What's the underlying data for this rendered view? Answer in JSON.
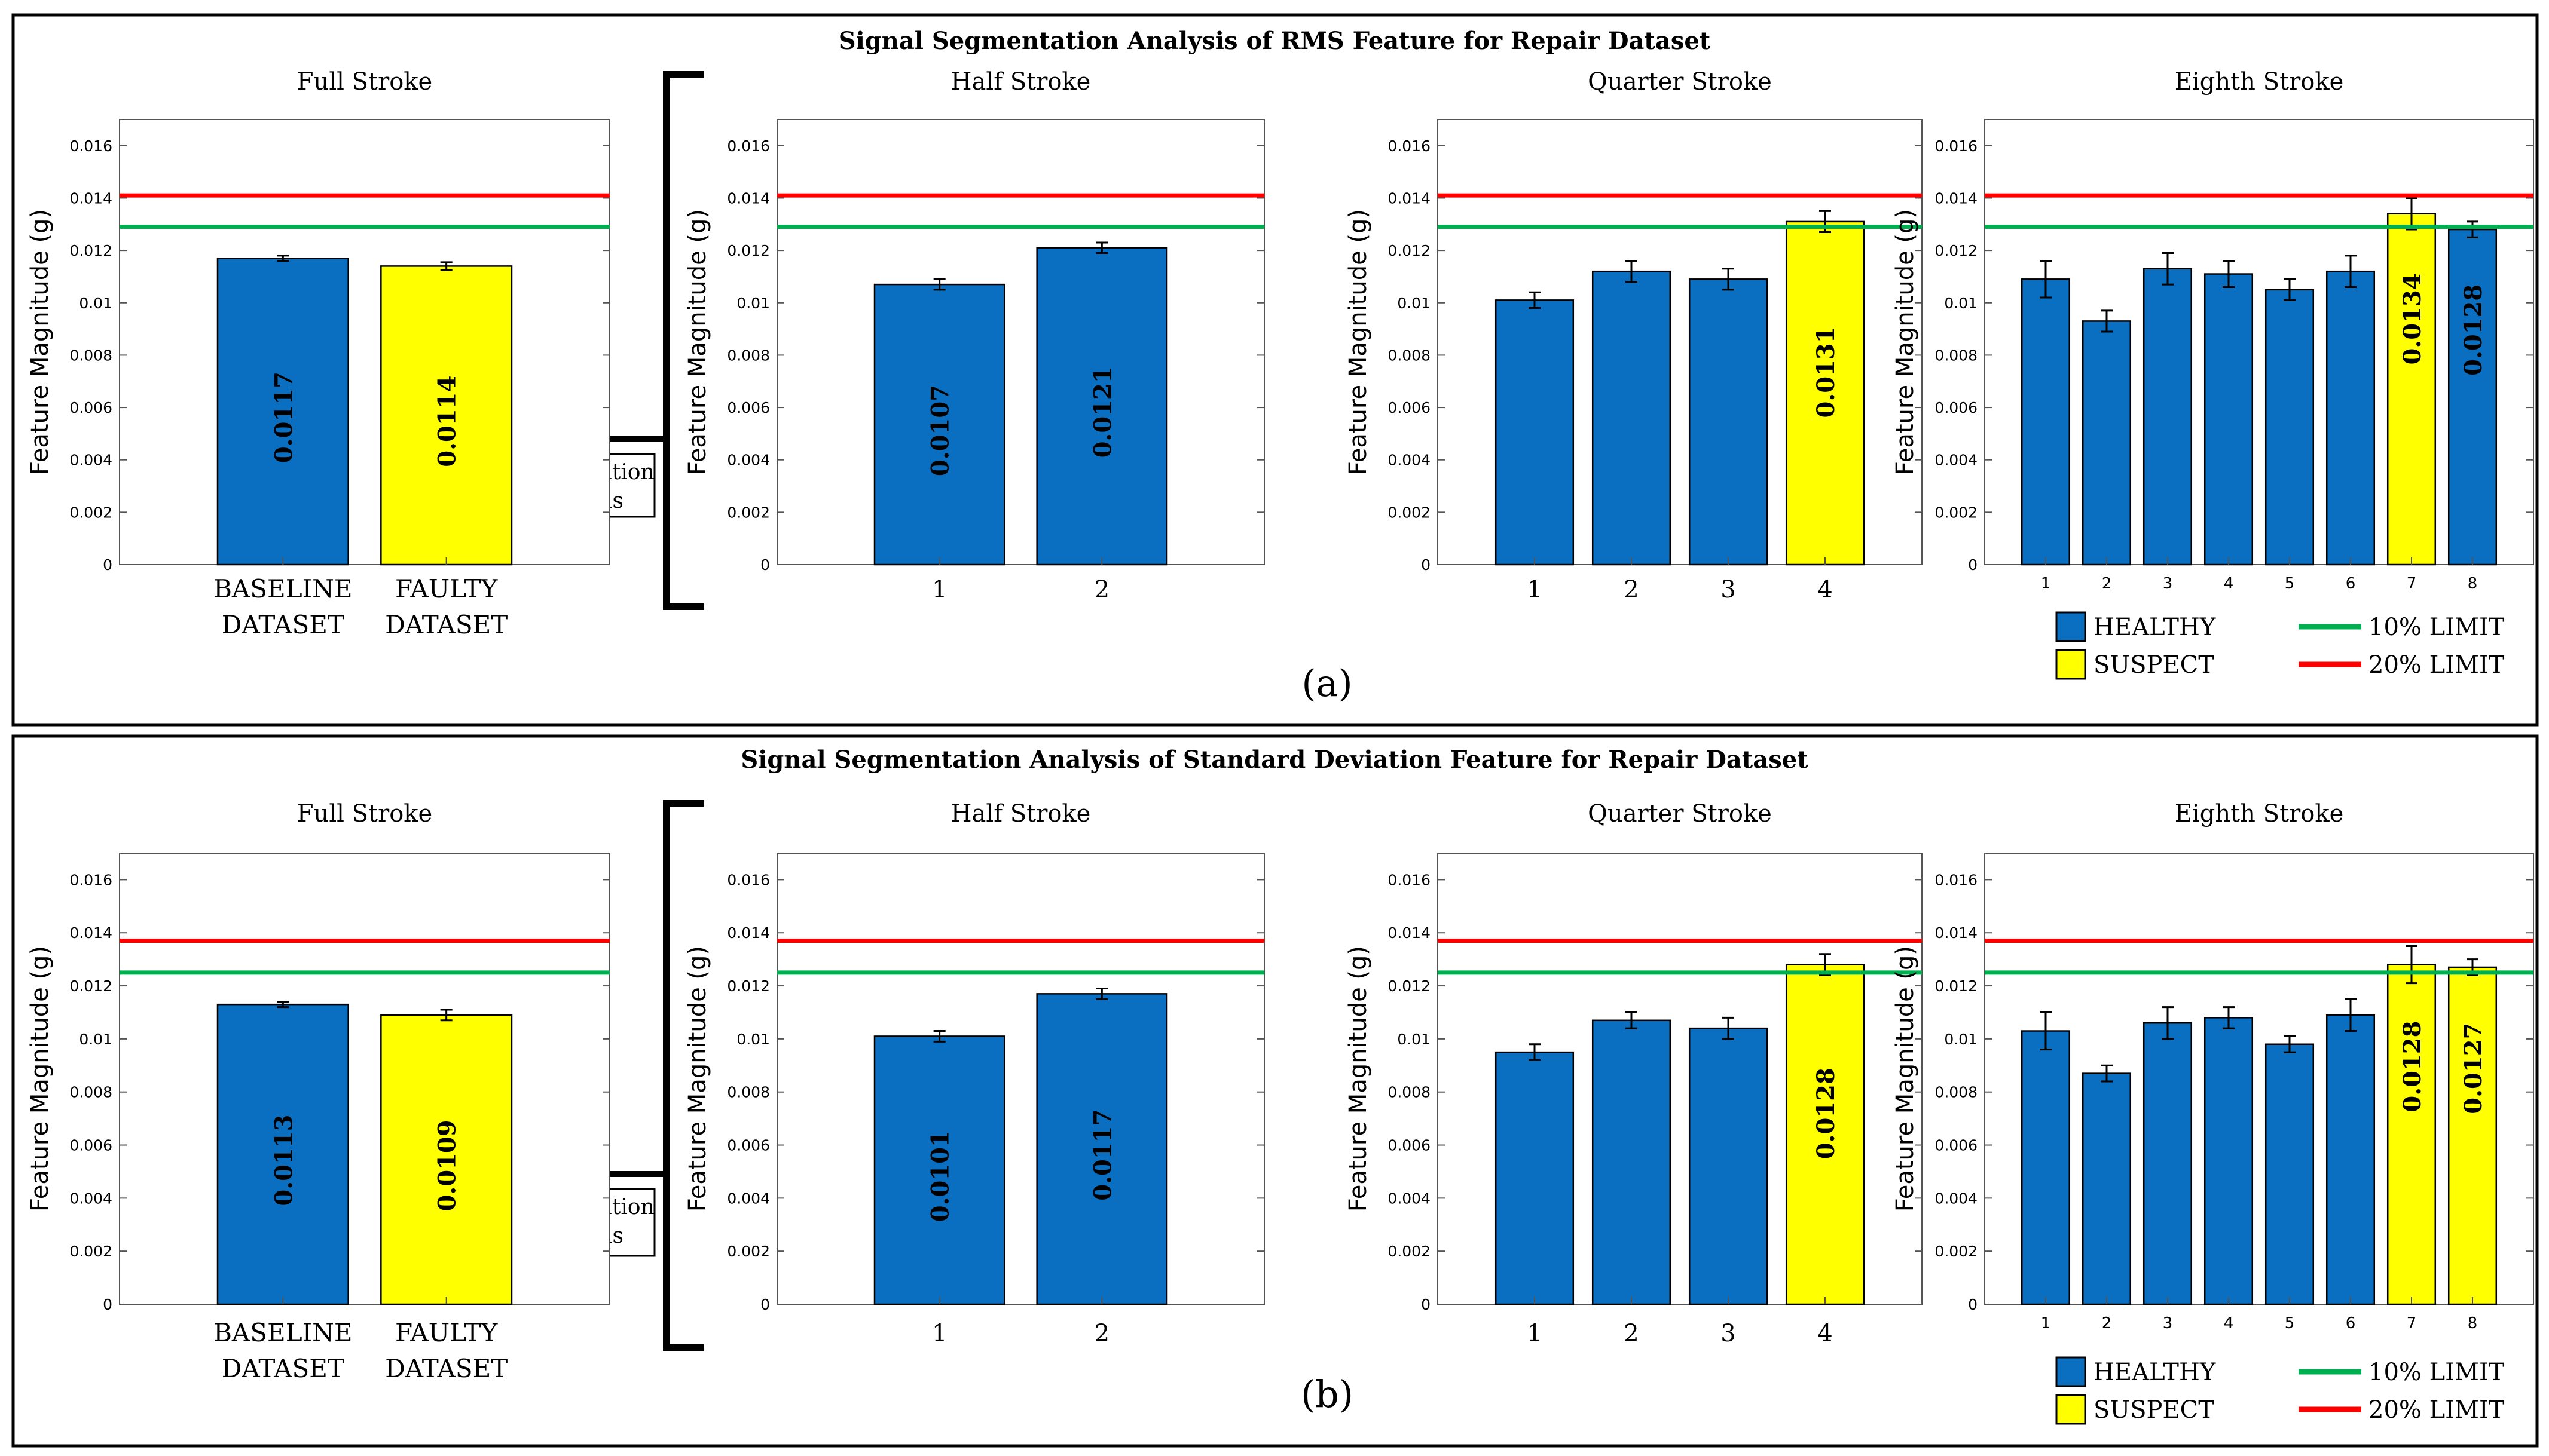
{
  "colors": {
    "healthy": "#0b6fc1",
    "suspect": "#ffff00",
    "limit10": "#00b050",
    "limit20": "#ff0000",
    "frame": "#000000"
  },
  "panels": [
    {
      "title": "Signal Segmentation Analysis of RMS Feature for Repair Dataset",
      "label": "(a)",
      "segmentation_label": [
        "Segmentation",
        "Analysis"
      ],
      "legend": {
        "healthy": "HEALTHY",
        "suspect": "SUSPECT",
        "limit10": "10% LIMIT",
        "limit20": "20% LIMIT"
      }
    },
    {
      "title": "Signal Segmentation Analysis of Standard Deviation Feature for Repair Dataset",
      "label": "(b)",
      "segmentation_label": [
        "Segmentation",
        "Analysis"
      ],
      "legend": {
        "healthy": "HEALTHY",
        "suspect": "SUSPECT",
        "limit10": "10% LIMIT",
        "limit20": "20% LIMIT"
      }
    }
  ],
  "chart_data": [
    {
      "panel": 0,
      "type": "bar",
      "title": "Full Stroke",
      "ylabel": "Feature Magnitude (g)",
      "ylim": [
        0,
        0.017
      ],
      "yticks": [
        "0",
        "0.002",
        "0.004",
        "0.006",
        "0.008",
        "0.01",
        "0.012",
        "0.014",
        "0.016"
      ],
      "categories": [
        [
          "BASELINE",
          "DATASET"
        ],
        [
          "FAULTY",
          "DATASET"
        ]
      ],
      "values": [
        0.0117,
        0.0114
      ],
      "errors": [
        0.0001,
        0.00015
      ],
      "status": [
        "healthy",
        "suspect"
      ],
      "labels": [
        "0.0117",
        "0.0114"
      ],
      "limit10": 0.0129,
      "limit20": 0.0141
    },
    {
      "panel": 0,
      "type": "bar",
      "title": "Half Stroke",
      "ylabel": "Feature Magnitude (g)",
      "ylim": [
        0,
        0.017
      ],
      "yticks": [
        "0",
        "0.002",
        "0.004",
        "0.006",
        "0.008",
        "0.01",
        "0.012",
        "0.014",
        "0.016"
      ],
      "categories": [
        "1",
        "2"
      ],
      "values": [
        0.0107,
        0.0121
      ],
      "errors": [
        0.0002,
        0.0002
      ],
      "status": [
        "healthy",
        "healthy"
      ],
      "labels": [
        "0.0107",
        "0.0121"
      ],
      "limit10": 0.0129,
      "limit20": 0.0141
    },
    {
      "panel": 0,
      "type": "bar",
      "title": "Quarter Stroke",
      "ylabel": "Feature Magnitude (g)",
      "ylim": [
        0,
        0.017
      ],
      "yticks": [
        "0",
        "0.002",
        "0.004",
        "0.006",
        "0.008",
        "0.01",
        "0.012",
        "0.014",
        "0.016"
      ],
      "categories": [
        "1",
        "2",
        "3",
        "4"
      ],
      "values": [
        0.0101,
        0.0112,
        0.0109,
        0.0131
      ],
      "errors": [
        0.0003,
        0.0004,
        0.0004,
        0.0004
      ],
      "status": [
        "healthy",
        "healthy",
        "healthy",
        "suspect"
      ],
      "labels": [
        "",
        "",
        "",
        "0.0131"
      ],
      "limit10": 0.0129,
      "limit20": 0.0141
    },
    {
      "panel": 0,
      "type": "bar",
      "title": "Eighth Stroke",
      "ylabel": "Feature Magnitude (g)",
      "ylim": [
        0,
        0.017
      ],
      "yticks": [
        "0",
        "0.002",
        "0.004",
        "0.006",
        "0.008",
        "0.01",
        "0.012",
        "0.014",
        "0.016"
      ],
      "categories": [
        "1",
        "2",
        "3",
        "4",
        "5",
        "6",
        "7",
        "8"
      ],
      "values": [
        0.0109,
        0.0093,
        0.0113,
        0.0111,
        0.0105,
        0.0112,
        0.0134,
        0.0128
      ],
      "errors": [
        0.0007,
        0.0004,
        0.0006,
        0.0005,
        0.0004,
        0.0006,
        0.0006,
        0.0003
      ],
      "status": [
        "healthy",
        "healthy",
        "healthy",
        "healthy",
        "healthy",
        "healthy",
        "suspect",
        "healthy"
      ],
      "labels": [
        "",
        "",
        "",
        "",
        "",
        "",
        "0.0134",
        "0.0128"
      ],
      "limit10": 0.0129,
      "limit20": 0.0141
    },
    {
      "panel": 1,
      "type": "bar",
      "title": "Full Stroke",
      "ylabel": "Feature Magnitude (g)",
      "ylim": [
        0,
        0.017
      ],
      "yticks": [
        "0",
        "0.002",
        "0.004",
        "0.006",
        "0.008",
        "0.01",
        "0.012",
        "0.014",
        "0.016"
      ],
      "categories": [
        [
          "BASELINE",
          "DATASET"
        ],
        [
          "FAULTY",
          "DATASET"
        ]
      ],
      "values": [
        0.0113,
        0.0109
      ],
      "errors": [
        0.0001,
        0.0002
      ],
      "status": [
        "healthy",
        "suspect"
      ],
      "labels": [
        "0.0113",
        "0.0109"
      ],
      "limit10": 0.0125,
      "limit20": 0.0137
    },
    {
      "panel": 1,
      "type": "bar",
      "title": "Half Stroke",
      "ylabel": "Feature Magnitude (g)",
      "ylim": [
        0,
        0.017
      ],
      "yticks": [
        "0",
        "0.002",
        "0.004",
        "0.006",
        "0.008",
        "0.01",
        "0.012",
        "0.014",
        "0.016"
      ],
      "categories": [
        "1",
        "2"
      ],
      "values": [
        0.0101,
        0.0117
      ],
      "errors": [
        0.0002,
        0.0002
      ],
      "status": [
        "healthy",
        "healthy"
      ],
      "labels": [
        "0.0101",
        "0.0117"
      ],
      "limit10": 0.0125,
      "limit20": 0.0137
    },
    {
      "panel": 1,
      "type": "bar",
      "title": "Quarter Stroke",
      "ylabel": "Feature Magnitude (g)",
      "ylim": [
        0,
        0.017
      ],
      "yticks": [
        "0",
        "0.002",
        "0.004",
        "0.006",
        "0.008",
        "0.01",
        "0.012",
        "0.014",
        "0.016"
      ],
      "categories": [
        "1",
        "2",
        "3",
        "4"
      ],
      "values": [
        0.0095,
        0.0107,
        0.0104,
        0.0128
      ],
      "errors": [
        0.0003,
        0.0003,
        0.0004,
        0.0004
      ],
      "status": [
        "healthy",
        "healthy",
        "healthy",
        "suspect"
      ],
      "labels": [
        "",
        "",
        "",
        "0.0128"
      ],
      "limit10": 0.0125,
      "limit20": 0.0137
    },
    {
      "panel": 1,
      "type": "bar",
      "title": "Eighth Stroke",
      "ylabel": "Feature Magnitude (g)",
      "ylim": [
        0,
        0.017
      ],
      "yticks": [
        "0",
        "0.002",
        "0.004",
        "0.006",
        "0.008",
        "0.01",
        "0.012",
        "0.014",
        "0.016"
      ],
      "categories": [
        "1",
        "2",
        "3",
        "4",
        "5",
        "6",
        "7",
        "8"
      ],
      "values": [
        0.0103,
        0.0087,
        0.0106,
        0.0108,
        0.0098,
        0.0109,
        0.0128,
        0.0127
      ],
      "errors": [
        0.0007,
        0.0003,
        0.0006,
        0.0004,
        0.0003,
        0.0006,
        0.0007,
        0.0003
      ],
      "status": [
        "healthy",
        "healthy",
        "healthy",
        "healthy",
        "healthy",
        "healthy",
        "suspect",
        "suspect"
      ],
      "labels": [
        "",
        "",
        "",
        "",
        "",
        "",
        "0.0128",
        "0.0127"
      ],
      "limit10": 0.0125,
      "limit20": 0.0137
    }
  ]
}
